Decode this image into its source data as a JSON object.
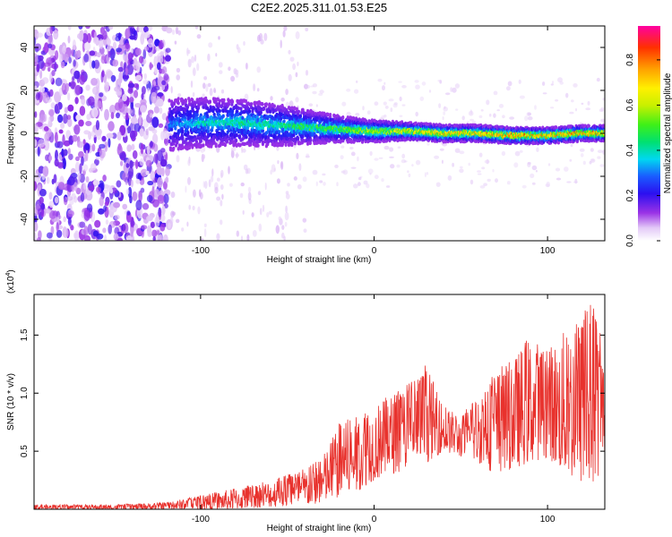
{
  "title": "C2E2.2025.311.01.53.E25",
  "chart_data": [
    {
      "type": "heatmap",
      "xlabel": "Height of straight line (km)",
      "ylabel": "Frequency (Hz)",
      "xlim": [
        -196,
        133
      ],
      "ylim": [
        -50,
        50
      ],
      "xticks": [
        -100,
        0,
        100
      ],
      "yticks": [
        -40,
        -20,
        0,
        20,
        40
      ],
      "colorbar": {
        "label": "Normalized spectral amplitude",
        "range": [
          0.0,
          0.95
        ],
        "ticks": [
          "0.0",
          "0.2",
          "0.4",
          "0.6",
          "0.8"
        ],
        "tick_values": [
          0.0,
          0.2,
          0.4,
          0.6,
          0.8
        ]
      },
      "ridge": {
        "description_points_x_km": [
          -118,
          -100,
          -80,
          -60,
          -40,
          -20,
          0,
          20,
          40,
          60,
          80,
          100,
          120,
          133
        ],
        "center_freq_hz": [
          4,
          5,
          5,
          4,
          3,
          2,
          1,
          1,
          0,
          0,
          -1,
          -1,
          0,
          0
        ],
        "peak_amplitude": [
          0.35,
          0.45,
          0.5,
          0.5,
          0.55,
          0.6,
          0.7,
          0.8,
          0.85,
          0.85,
          0.9,
          0.9,
          0.9,
          0.9
        ]
      },
      "noise_region_x_km": [
        -196,
        -118
      ]
    },
    {
      "type": "line",
      "xlabel": "Height of straight line (km)",
      "ylabel": "SNR (10 * v/v)",
      "multiplier_label": "(x10",
      "multiplier_exp": "4",
      "multiplier_close": ")",
      "xlim": [
        -196,
        133
      ],
      "ylim": [
        0,
        1.85
      ],
      "xticks": [
        -100,
        0,
        100
      ],
      "yticks": [
        0.5,
        1.0,
        1.5
      ],
      "ytick_labels": [
        "0.5",
        "1.0",
        "1.5"
      ],
      "line_color": "#e8322d",
      "envelope": {
        "x": [
          -196,
          -150,
          -120,
          -100,
          -80,
          -60,
          -40,
          -30,
          -20,
          -10,
          0,
          10,
          20,
          30,
          40,
          50,
          60,
          70,
          80,
          90,
          100,
          110,
          120,
          125,
          130,
          133
        ],
        "upper": [
          0.04,
          0.04,
          0.06,
          0.12,
          0.18,
          0.25,
          0.35,
          0.45,
          0.75,
          0.8,
          0.9,
          1.0,
          1.1,
          1.25,
          0.9,
          0.8,
          1.0,
          1.2,
          1.3,
          1.5,
          1.4,
          1.55,
          1.7,
          1.85,
          1.6,
          1.2
        ],
        "lower": [
          0.0,
          0.0,
          0.0,
          0.0,
          0.0,
          0.02,
          0.03,
          0.05,
          0.1,
          0.15,
          0.25,
          0.3,
          0.35,
          0.4,
          0.5,
          0.45,
          0.4,
          0.3,
          0.35,
          0.4,
          0.45,
          0.3,
          0.2,
          0.15,
          0.3,
          0.5
        ]
      }
    }
  ]
}
